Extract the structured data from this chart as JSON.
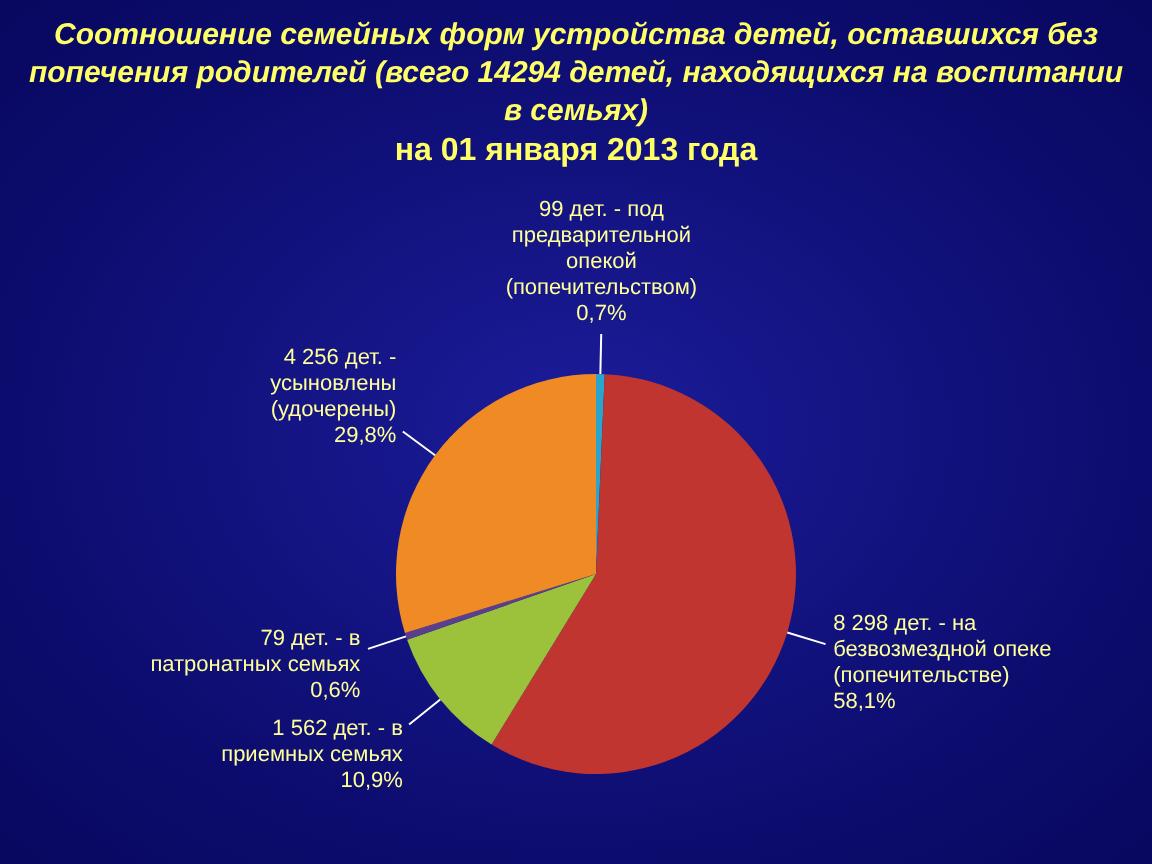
{
  "chart_data": {
    "type": "pie",
    "title": "Соотношение семейных форм устройства детей, оставшихся без попечения родителей (всего 14294 детей, находящихся на воспитании в семьях)",
    "subtitle": "на 01 января 2013 года",
    "categories": [
      "под предварительной опекой (попечительством)",
      "на безвозмездной опеке (попечительстве)",
      "в приемных семьях",
      "в патронатных семьях",
      "усыновлены (удочерены)"
    ],
    "values": [
      99,
      8298,
      1562,
      79,
      4256
    ],
    "colors": [
      "#2aa6cc",
      "#c0352f",
      "#9cc23c",
      "#5b3f8f",
      "#f08a24"
    ],
    "value_labels": [
      "99 дет. -",
      "8 298 дет. -",
      "1 562 дет. -",
      "79 дет. -",
      "4 256 дет. -"
    ],
    "annotations": [
      "0,7%",
      "58,1%",
      "10,9%",
      "0,6%",
      "29,8%"
    ]
  }
}
